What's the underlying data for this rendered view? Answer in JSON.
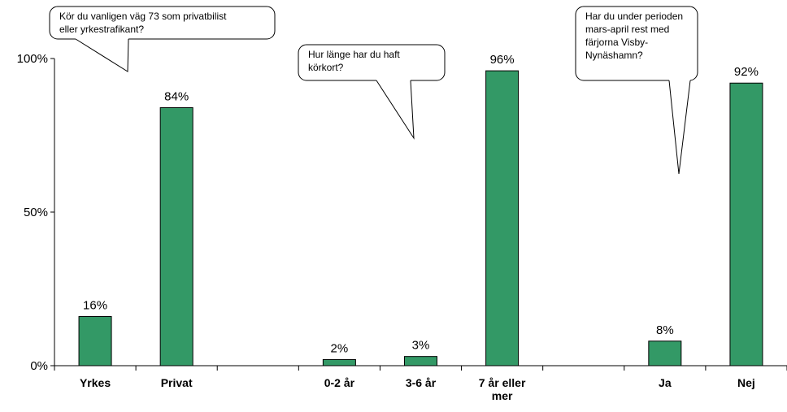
{
  "chart_data": {
    "type": "bar",
    "categories": [
      "Yrkes",
      "Privat",
      "",
      "0-2 år",
      "3-6 år",
      "7 år eller mer",
      "",
      "Ja",
      "Nej"
    ],
    "category_lines": [
      [
        "Yrkes"
      ],
      [
        "Privat"
      ],
      [],
      [
        "0-2 år"
      ],
      [
        "3-6 år"
      ],
      [
        "7 år eller",
        "mer"
      ],
      [],
      [
        "Ja"
      ],
      [
        "Nej"
      ]
    ],
    "values": [
      16,
      84,
      null,
      2,
      3,
      96,
      null,
      8,
      92
    ],
    "data_labels": [
      "16%",
      "84%",
      "",
      "2%",
      "3%",
      "96%",
      "",
      "8%",
      "92%"
    ],
    "ylim": [
      0,
      100
    ],
    "yticks": [
      0,
      50,
      100
    ],
    "ytick_labels": [
      "0%",
      "50%",
      "100%"
    ],
    "bar_color": "#339966",
    "bar_edge_color": "#000000",
    "grid": false,
    "legend": "none",
    "annotations": [
      {
        "lines": [
          "Kör du vanligen väg 73 som privatbilist",
          "eller yrkestrafikant?"
        ]
      },
      {
        "lines": [
          "Hur länge har du haft",
          "körkort?"
        ]
      },
      {
        "lines": [
          "Har du under perioden",
          "mars-april rest med",
          "färjorna Visby-",
          "Nynäshamn?"
        ]
      }
    ]
  }
}
